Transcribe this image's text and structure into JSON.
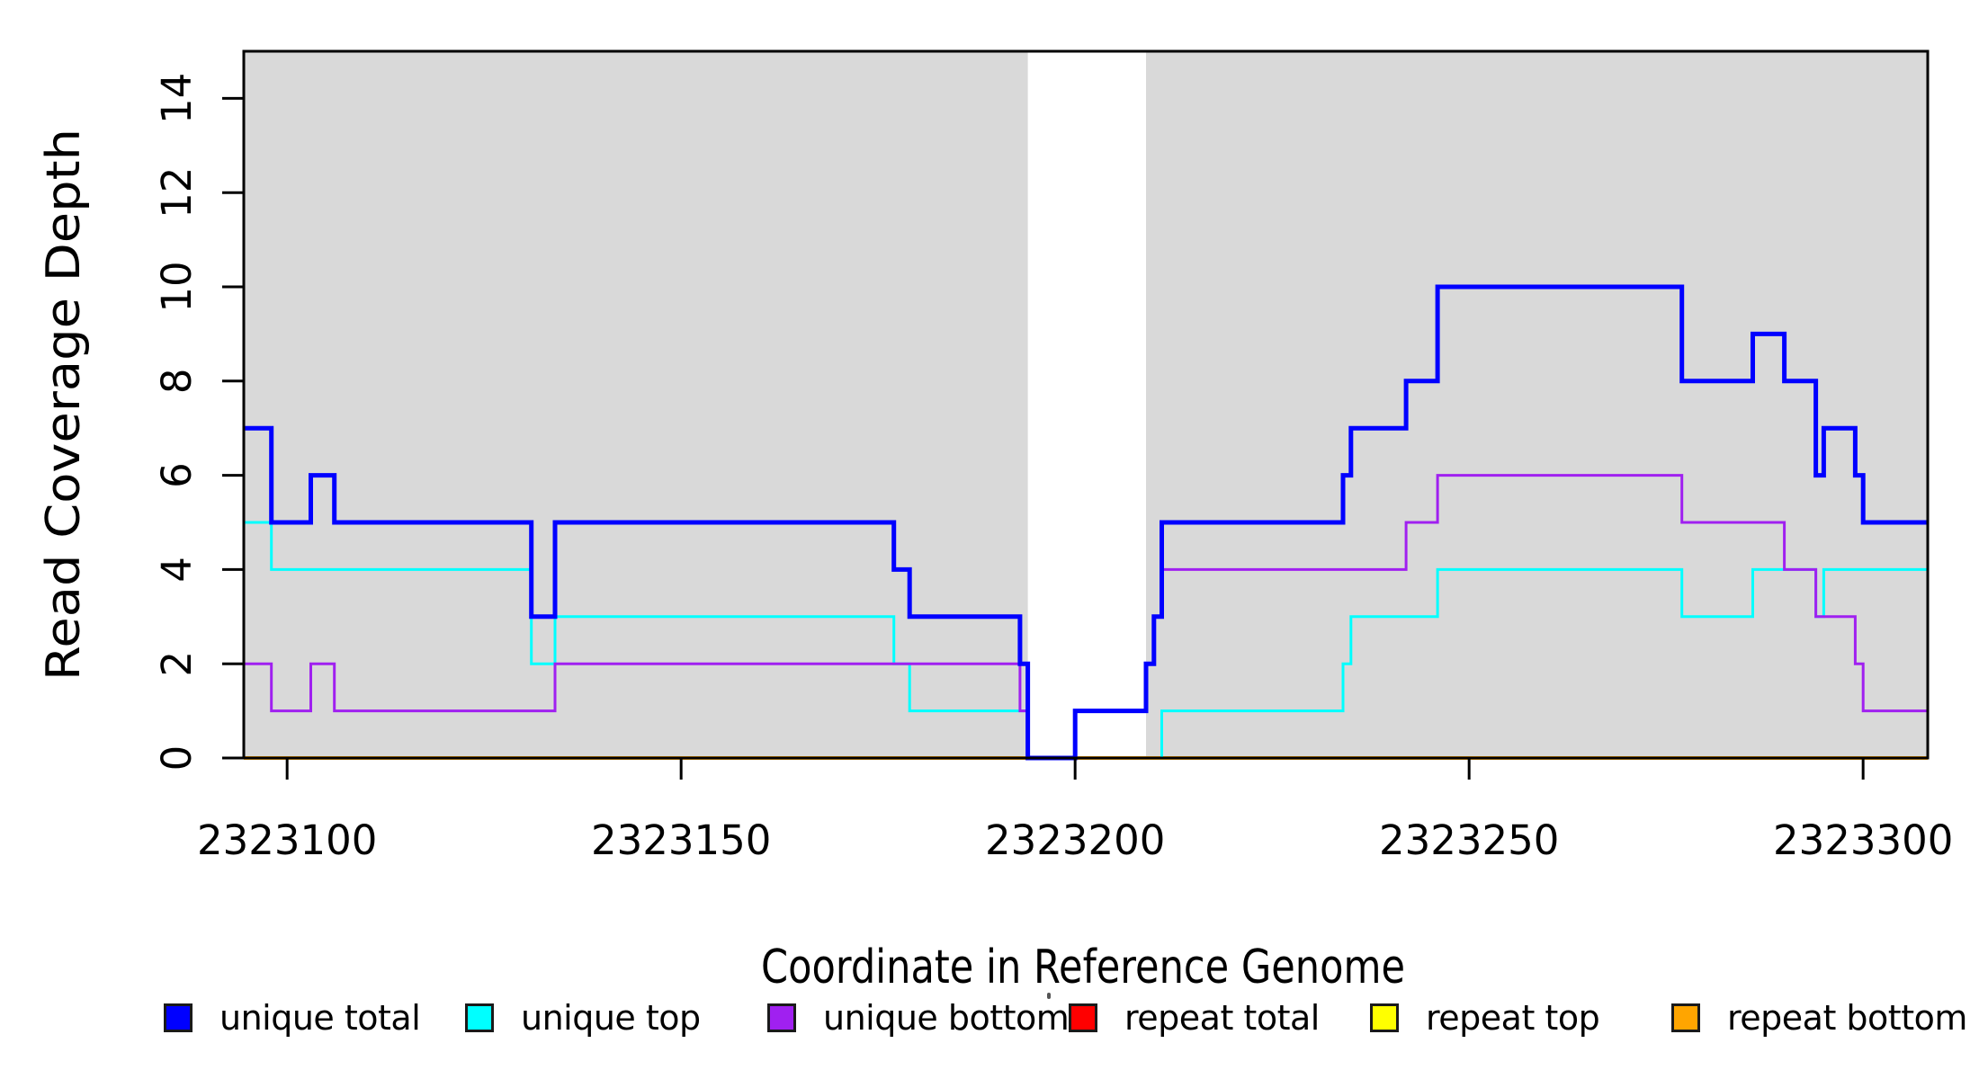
{
  "figure": {
    "background": "#FFFFFF",
    "plot_background_shade": "#D9D9D9",
    "box_color": "#000000"
  },
  "chart_data": {
    "type": "line",
    "subtype": "step",
    "title": "",
    "xlabel": "Coordinate in Reference Genome",
    "ylabel": "Read Coverage Depth",
    "xlim": [
      2323094.5,
      2323308.2
    ],
    "ylim": [
      0,
      15
    ],
    "xticks": [
      2323100,
      2323150,
      2323200,
      2323250,
      2323300
    ],
    "yticks": [
      0,
      2,
      4,
      6,
      8,
      10,
      12,
      14
    ],
    "grid": false,
    "legend_position": "bottom",
    "shaded_regions": [
      {
        "from": 2323094.5,
        "to": 2323194,
        "color": "#D9D9D9"
      },
      {
        "from": 2323209,
        "to": 2323308.2,
        "color": "#D9D9D9"
      }
    ],
    "white_gap_region": {
      "from": 2323194,
      "to": 2323209
    },
    "series": [
      {
        "name": "unique total",
        "color": "#0000FF",
        "stroke_width": 5,
        "breakpoints": [
          [
            2323095,
            7
          ],
          [
            2323098,
            5
          ],
          [
            2323103,
            6
          ],
          [
            2323106,
            5
          ],
          [
            2323131,
            3
          ],
          [
            2323134,
            5
          ],
          [
            2323177,
            4
          ],
          [
            2323179,
            3
          ],
          [
            2323193,
            2
          ],
          [
            2323194,
            0
          ],
          [
            2323200,
            1
          ],
          [
            2323209,
            2
          ],
          [
            2323210,
            3
          ],
          [
            2323211,
            5
          ],
          [
            2323234,
            6
          ],
          [
            2323235,
            7
          ],
          [
            2323242,
            8
          ],
          [
            2323246,
            10
          ],
          [
            2323277,
            8
          ],
          [
            2323286,
            9
          ],
          [
            2323290,
            8
          ],
          [
            2323294,
            6
          ],
          [
            2323295,
            7
          ],
          [
            2323299,
            6
          ],
          [
            2323300,
            5
          ]
        ]
      },
      {
        "name": "unique top",
        "color": "#00FFFF",
        "stroke_width": 3,
        "breakpoints": [
          [
            2323095,
            5
          ],
          [
            2323098,
            4
          ],
          [
            2323131,
            2
          ],
          [
            2323134,
            3
          ],
          [
            2323177,
            2
          ],
          [
            2323179,
            1
          ],
          [
            2323194,
            0
          ],
          [
            2323211,
            1
          ],
          [
            2323234,
            2
          ],
          [
            2323235,
            3
          ],
          [
            2323246,
            4
          ],
          [
            2323277,
            3
          ],
          [
            2323286,
            4
          ],
          [
            2323294,
            3
          ],
          [
            2323295,
            4
          ]
        ]
      },
      {
        "name": "unique bottom",
        "color": "#A020F0",
        "stroke_width": 3,
        "breakpoints": [
          [
            2323095,
            2
          ],
          [
            2323098,
            1
          ],
          [
            2323103,
            2
          ],
          [
            2323106,
            1
          ],
          [
            2323134,
            2
          ],
          [
            2323193,
            1
          ],
          [
            2323194,
            0
          ],
          [
            2323200,
            1
          ],
          [
            2323209,
            2
          ],
          [
            2323210,
            3
          ],
          [
            2323211,
            4
          ],
          [
            2323242,
            5
          ],
          [
            2323246,
            6
          ],
          [
            2323277,
            5
          ],
          [
            2323290,
            4
          ],
          [
            2323294,
            3
          ],
          [
            2323299,
            2
          ],
          [
            2323300,
            1
          ]
        ]
      },
      {
        "name": "repeat total",
        "color": "#FF0000",
        "stroke_width": 3,
        "breakpoints": [
          [
            2323095,
            0
          ]
        ]
      },
      {
        "name": "repeat top",
        "color": "#FFFF00",
        "stroke_width": 3,
        "breakpoints": [
          [
            2323095,
            0
          ]
        ]
      },
      {
        "name": "repeat bottom",
        "color": "#FFA500",
        "stroke_width": 4,
        "breakpoints": [
          [
            2323095,
            0
          ]
        ]
      }
    ],
    "draw_order": [
      3,
      4,
      5,
      1,
      2,
      0
    ]
  },
  "legend": {
    "items": [
      {
        "label": "unique total",
        "color": "#0000FF"
      },
      {
        "label": "unique top",
        "color": "#00FFFF"
      },
      {
        "label": "unique bottom",
        "color": "#A020F0"
      },
      {
        "label": "repeat total",
        "color": "#FF0000"
      },
      {
        "label": "repeat top",
        "color": "#FFFF00"
      },
      {
        "label": "repeat bottom",
        "color": "#FFA500"
      }
    ]
  }
}
